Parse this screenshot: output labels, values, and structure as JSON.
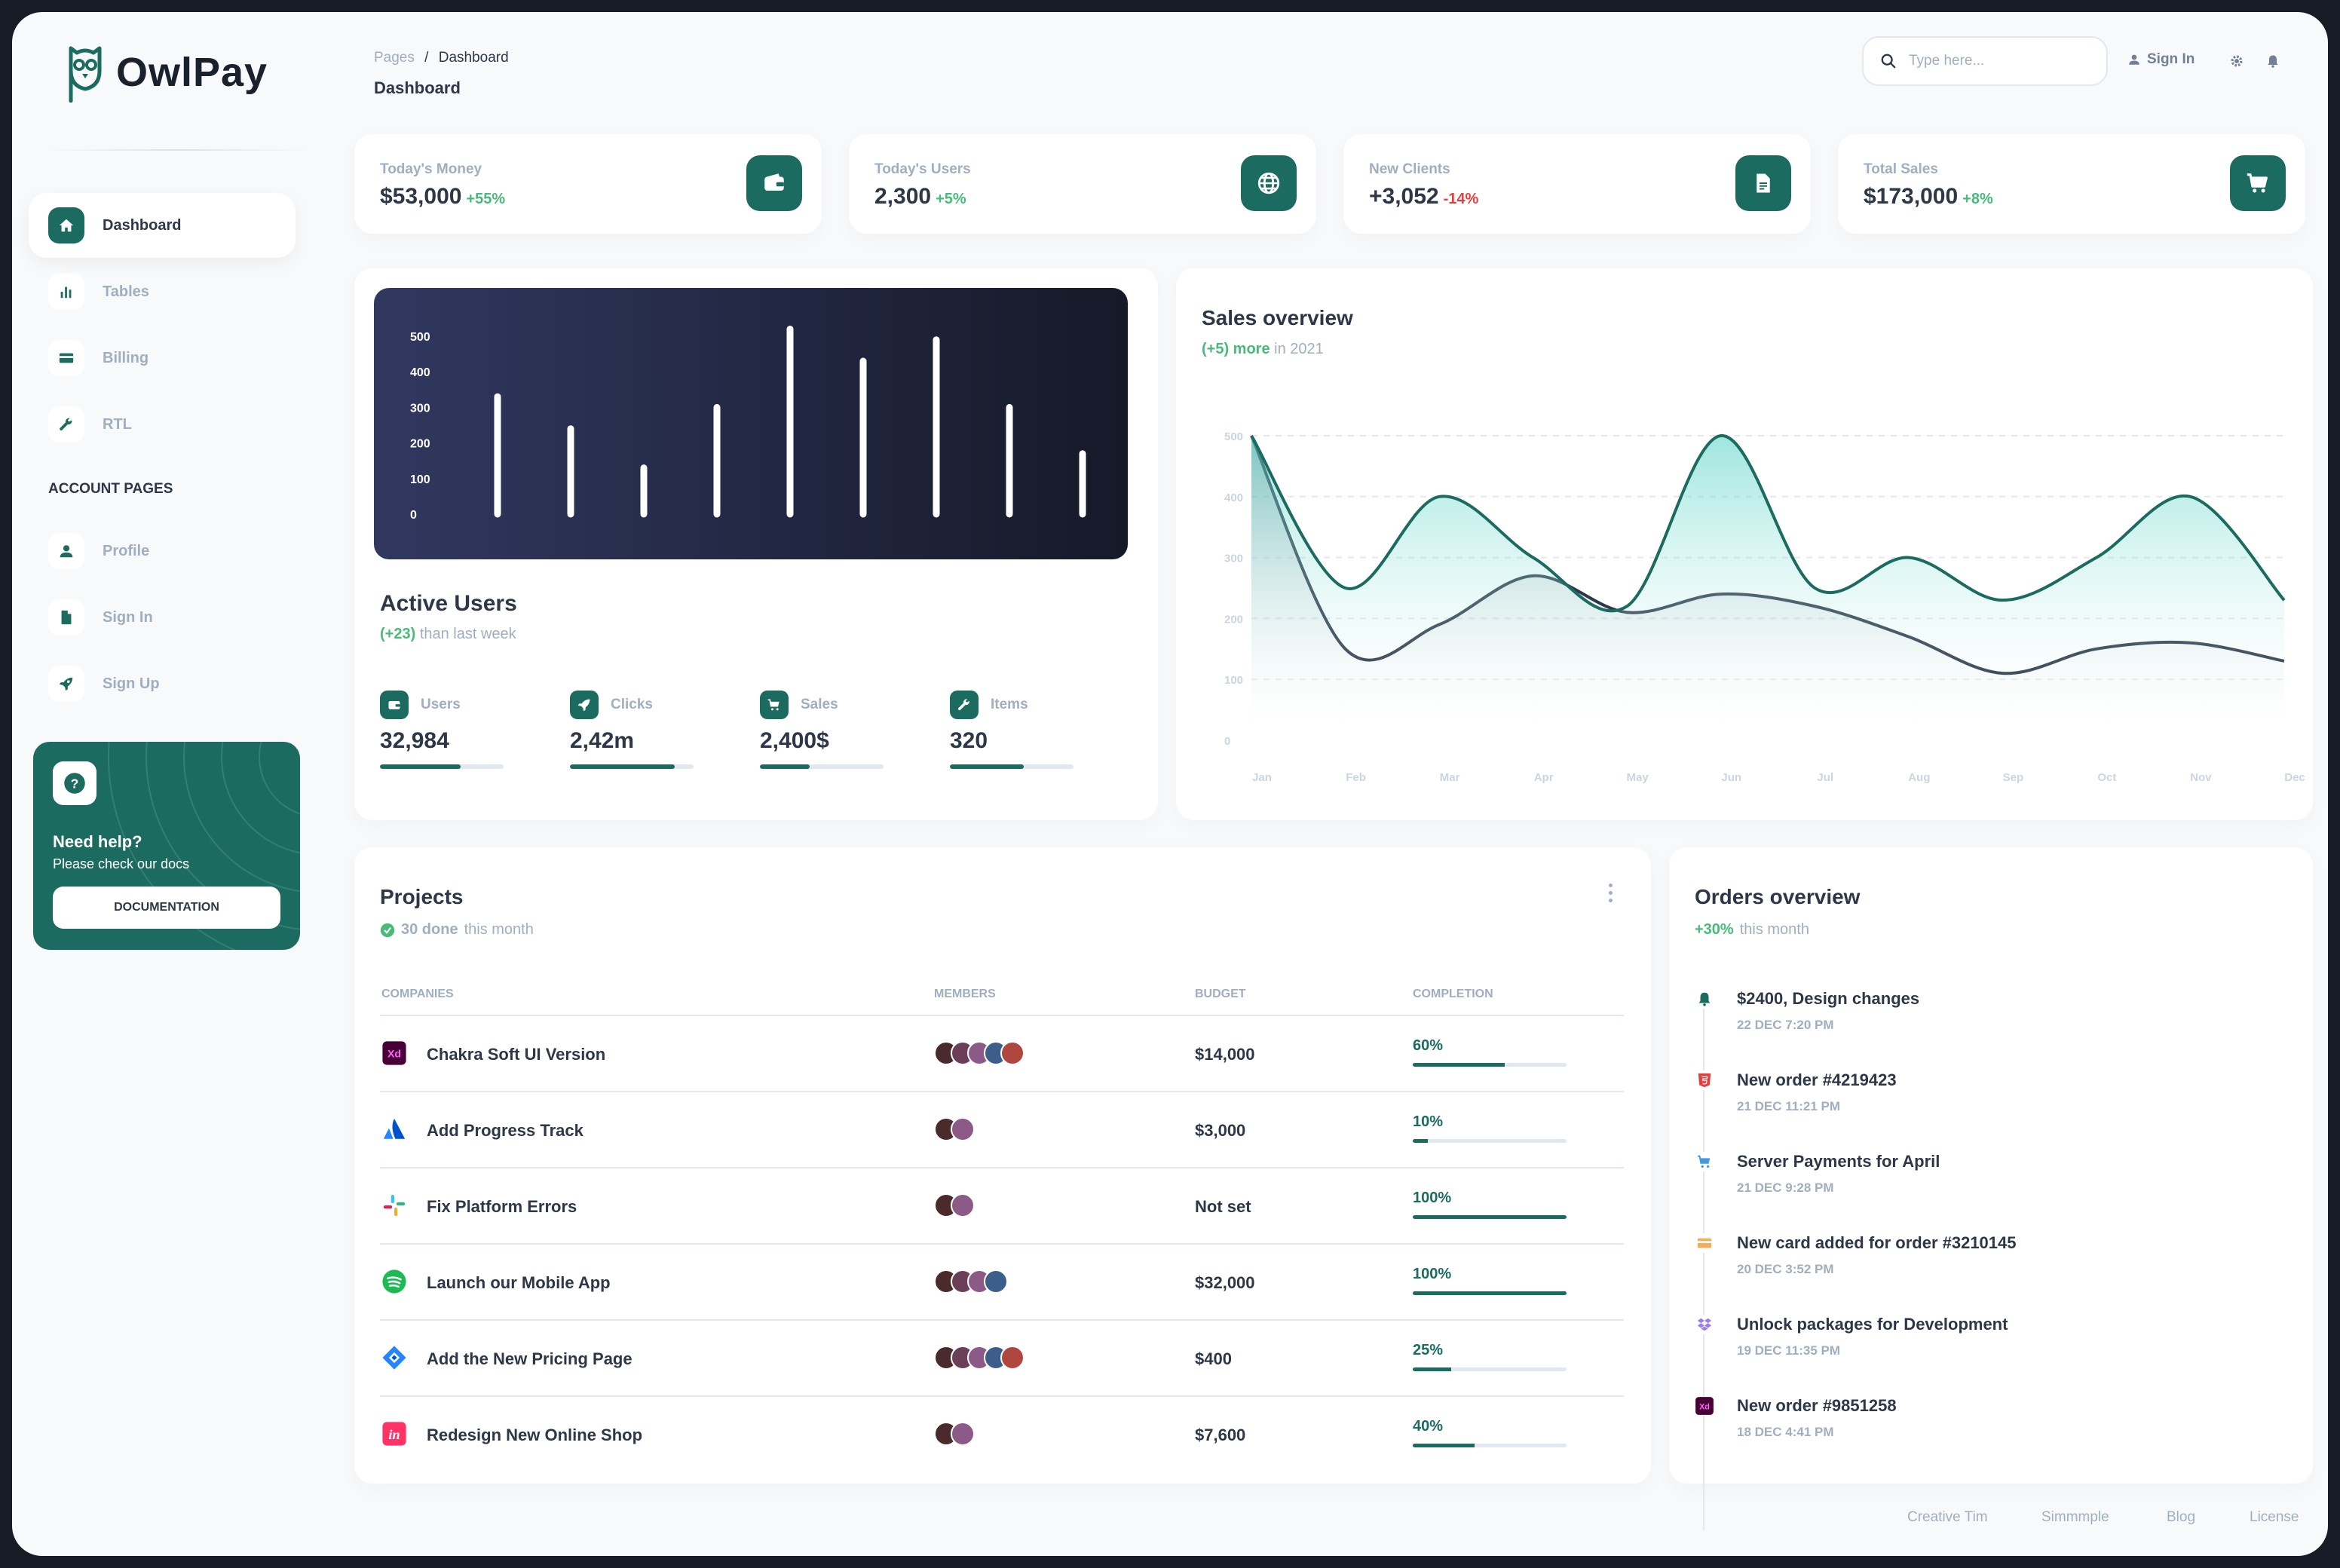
{
  "brand": {
    "name": "OwlPay"
  },
  "sidebar": {
    "items": [
      {
        "label": "Dashboard",
        "icon": "home-icon",
        "active": true
      },
      {
        "label": "Tables",
        "icon": "bar-chart-icon"
      },
      {
        "label": "Billing",
        "icon": "credit-card-icon"
      },
      {
        "label": "RTL",
        "icon": "wrench-icon"
      }
    ],
    "section_title": "ACCOUNT PAGES",
    "account_items": [
      {
        "label": "Profile",
        "icon": "user-icon"
      },
      {
        "label": "Sign In",
        "icon": "document-icon"
      },
      {
        "label": "Sign Up",
        "icon": "rocket-icon"
      }
    ],
    "help": {
      "title": "Need help?",
      "subtitle": "Please check our docs",
      "button": "DOCUMENTATION"
    }
  },
  "header": {
    "breadcrumb_root": "Pages",
    "breadcrumb_sep": "/",
    "breadcrumb_current": "Dashboard",
    "title": "Dashboard",
    "search_placeholder": "Type here...",
    "signin_label": "Sign In"
  },
  "stats": [
    {
      "label": "Today's Money",
      "value": "$53,000",
      "delta": "+55%",
      "positive": true,
      "icon": "wallet-icon"
    },
    {
      "label": "Today's Users",
      "value": "2,300",
      "delta": "+5%",
      "positive": true,
      "icon": "globe-icon"
    },
    {
      "label": "New Clients",
      "value": "+3,052",
      "delta": "-14%",
      "positive": false,
      "icon": "document-icon"
    },
    {
      "label": "Total Sales",
      "value": "$173,000",
      "delta": "+8%",
      "positive": true,
      "icon": "cart-icon"
    }
  ],
  "active_users": {
    "title": "Active Users",
    "delta": "(+23)",
    "delta_suffix": "than last week",
    "metrics": [
      {
        "label": "Users",
        "value": "32,984",
        "progress": 0.65,
        "icon": "wallet-icon"
      },
      {
        "label": "Clicks",
        "value": "2,42m",
        "progress": 0.85,
        "icon": "rocket-icon"
      },
      {
        "label": "Sales",
        "value": "2,400$",
        "progress": 0.4,
        "icon": "cart-icon"
      },
      {
        "label": "Items",
        "value": "320",
        "progress": 0.6,
        "icon": "wrench-icon"
      }
    ]
  },
  "sales_overview": {
    "title": "Sales overview",
    "delta": "(+5) more",
    "delta_suffix": "in 2021"
  },
  "chart_data": [
    {
      "type": "bar",
      "categories": [
        "",
        "",
        "",
        "",
        "",
        "",
        "",
        "",
        ""
      ],
      "values": [
        330,
        240,
        130,
        300,
        520,
        430,
        490,
        300,
        170
      ],
      "ylim": [
        0,
        500
      ],
      "yticks": [
        0,
        100,
        200,
        300,
        400,
        500
      ],
      "grid": false,
      "colors": [
        "#ffffff"
      ]
    },
    {
      "type": "area",
      "categories": [
        "Jan",
        "Feb",
        "Mar",
        "Apr",
        "May",
        "Jun",
        "Jul",
        "Aug",
        "Sep",
        "Oct",
        "Nov",
        "Dec"
      ],
      "series": [
        {
          "values": [
            500,
            250,
            400,
            300,
            220,
            500,
            250,
            300,
            230,
            300,
            400,
            230
          ],
          "color": "#1b6b61"
        },
        {
          "values": [
            500,
            150,
            190,
            270,
            210,
            240,
            220,
            170,
            110,
            150,
            160,
            130
          ],
          "color": "#2d3748"
        }
      ],
      "ylim": [
        0,
        500
      ],
      "yticks": [
        0,
        100,
        200,
        300,
        400,
        500
      ],
      "grid": true
    }
  ],
  "projects": {
    "title": "Projects",
    "done": "30 done",
    "done_suffix": "this month",
    "columns": [
      "COMPANIES",
      "MEMBERS",
      "BUDGET",
      "COMPLETION"
    ],
    "rows": [
      {
        "name": "Chakra Soft UI Version",
        "logo": "xd-icon",
        "members": 5,
        "budget": "$14,000",
        "completion": "60%",
        "progress": 0.6
      },
      {
        "name": "Add Progress Track",
        "logo": "atlassian-icon",
        "members": 2,
        "budget": "$3,000",
        "completion": "10%",
        "progress": 0.1
      },
      {
        "name": "Fix Platform Errors",
        "logo": "slack-icon",
        "members": 2,
        "budget": "Not set",
        "completion": "100%",
        "progress": 1.0
      },
      {
        "name": "Launch our Mobile App",
        "logo": "spotify-icon",
        "members": 4,
        "budget": "$32,000",
        "completion": "100%",
        "progress": 1.0
      },
      {
        "name": "Add the New Pricing Page",
        "logo": "jira-icon",
        "members": 5,
        "budget": "$400",
        "completion": "25%",
        "progress": 0.25
      },
      {
        "name": "Redesign New Online Shop",
        "logo": "invision-icon",
        "members": 2,
        "budget": "$7,600",
        "completion": "40%",
        "progress": 0.4
      }
    ]
  },
  "orders": {
    "title": "Orders overview",
    "delta": "+30%",
    "delta_suffix": "this month",
    "items": [
      {
        "title": "$2400, Design changes",
        "date": "22 DEC 7:20 PM",
        "icon": "bell-icon",
        "color": "#1b6b61"
      },
      {
        "title": "New order #4219423",
        "date": "21 DEC 11:21 PM",
        "icon": "html5-icon",
        "color": "#e53e3e"
      },
      {
        "title": "Server Payments for April",
        "date": "21 DEC 9:28 PM",
        "icon": "cart-icon",
        "color": "#4299e1"
      },
      {
        "title": "New card added for order #3210145",
        "date": "20 DEC 3:52 PM",
        "icon": "credit-card-icon",
        "color": "#f6ad55"
      },
      {
        "title": "Unlock packages for Development",
        "date": "19 DEC 11:35 PM",
        "icon": "dropbox-icon",
        "color": "#9f7aea"
      },
      {
        "title": "New order #9851258",
        "date": "18 DEC 4:41 PM",
        "icon": "xd-icon",
        "color": "#470137"
      }
    ]
  },
  "footer": {
    "links": [
      "Creative Tim",
      "Simmmple",
      "Blog",
      "License"
    ]
  }
}
